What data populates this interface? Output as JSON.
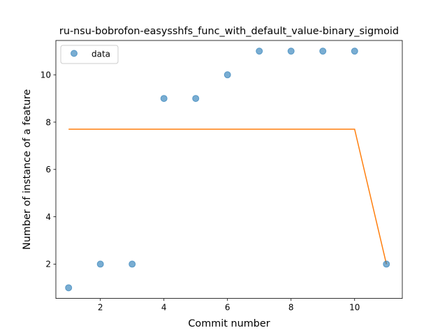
{
  "chart_data": {
    "type": "scatter",
    "title": "ru-nsu-bobrofon-easysshfs_func_with_default_value-binary_sigmoid",
    "xlabel": "Commit number",
    "ylabel": "Number of instance of a feature",
    "xlim": [
      0.6,
      11.5
    ],
    "ylim": [
      0.55,
      11.45
    ],
    "xticks": [
      2,
      4,
      6,
      8,
      10
    ],
    "yticks": [
      2,
      4,
      6,
      8,
      10
    ],
    "grid": false,
    "legend": {
      "position": "top-left",
      "entries": [
        "data"
      ]
    },
    "series": [
      {
        "name": "data",
        "kind": "scatter",
        "color": "#1f77b4",
        "x": [
          1,
          2,
          3,
          4,
          5,
          6,
          7,
          8,
          9,
          10,
          11
        ],
        "y": [
          1,
          2,
          2,
          9,
          9,
          10,
          11,
          11,
          11,
          11,
          2
        ]
      },
      {
        "kind": "line",
        "color": "#ff7f0e",
        "x": [
          1,
          2,
          3,
          4,
          5,
          6,
          7,
          8,
          9,
          10,
          11
        ],
        "y": [
          7.7,
          7.7,
          7.7,
          7.7,
          7.7,
          7.7,
          7.7,
          7.7,
          7.7,
          7.7,
          2.0
        ]
      }
    ]
  }
}
